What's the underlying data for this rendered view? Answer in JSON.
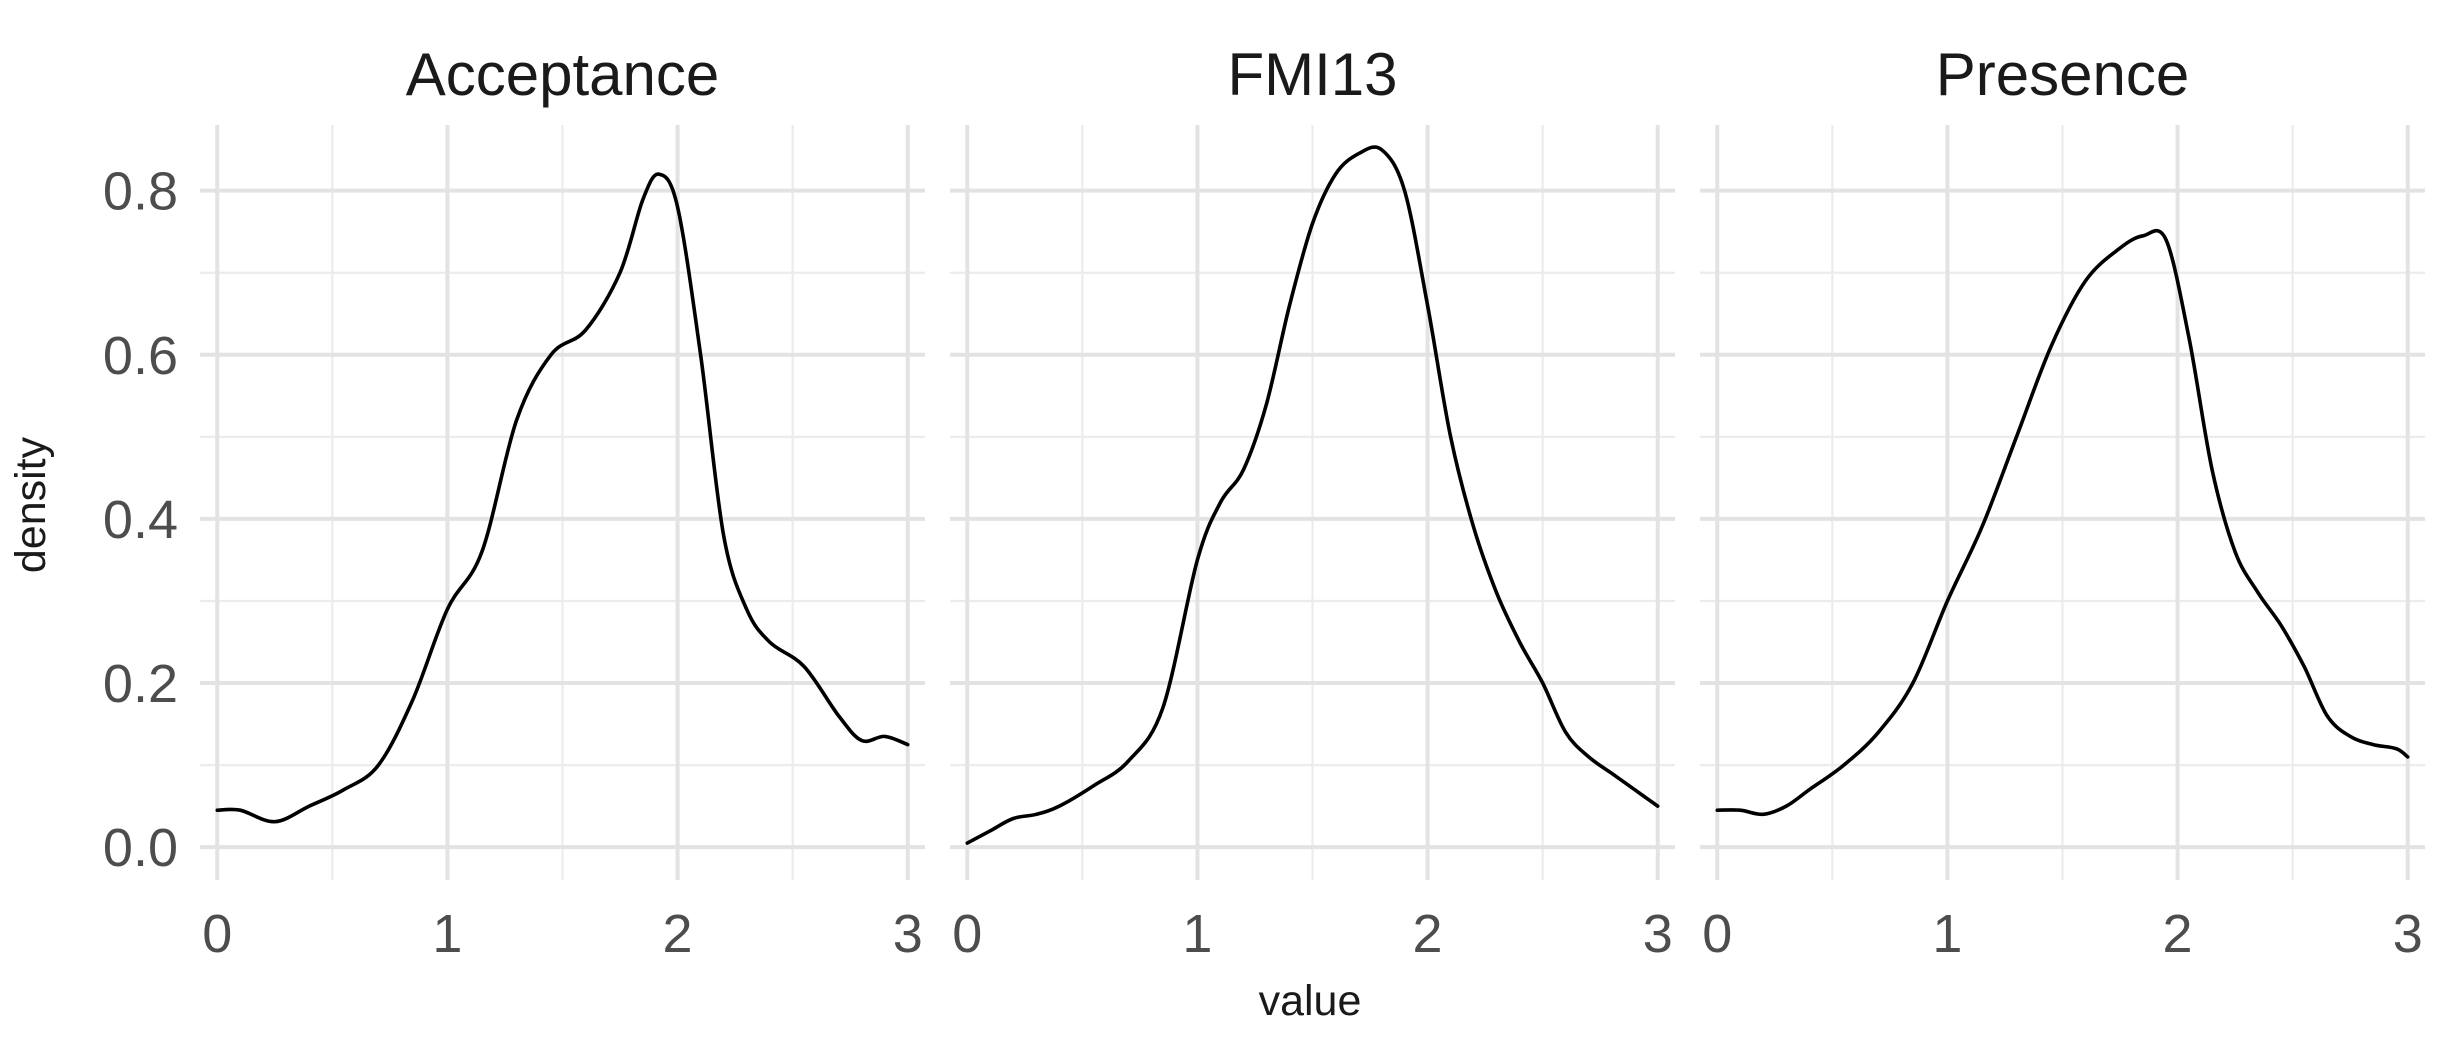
{
  "chart_data": {
    "type": "line",
    "xlabel": "value",
    "ylabel": "density",
    "xlim": [
      -0.075,
      3.075
    ],
    "ylim": [
      -0.04,
      0.88
    ],
    "x_ticks": [
      0,
      1,
      2,
      3
    ],
    "y_ticks": [
      0.0,
      0.2,
      0.4,
      0.6,
      0.8
    ],
    "y_tick_labels": [
      "0.0",
      "0.2",
      "0.4",
      "0.6",
      "0.8"
    ],
    "grid": true,
    "facets": [
      {
        "title": "Acceptance",
        "points": [
          [
            0.0,
            0.045
          ],
          [
            0.1,
            0.045
          ],
          [
            0.25,
            0.031
          ],
          [
            0.4,
            0.05
          ],
          [
            0.55,
            0.07
          ],
          [
            0.7,
            0.1
          ],
          [
            0.85,
            0.18
          ],
          [
            1.0,
            0.29
          ],
          [
            1.15,
            0.36
          ],
          [
            1.3,
            0.52
          ],
          [
            1.45,
            0.6
          ],
          [
            1.6,
            0.63
          ],
          [
            1.75,
            0.7
          ],
          [
            1.85,
            0.79
          ],
          [
            1.92,
            0.82
          ],
          [
            2.0,
            0.78
          ],
          [
            2.1,
            0.6
          ],
          [
            2.2,
            0.38
          ],
          [
            2.3,
            0.29
          ],
          [
            2.4,
            0.25
          ],
          [
            2.55,
            0.22
          ],
          [
            2.7,
            0.16
          ],
          [
            2.8,
            0.13
          ],
          [
            2.9,
            0.135
          ],
          [
            3.0,
            0.125
          ]
        ]
      },
      {
        "title": "FMI13",
        "points": [
          [
            0.0,
            0.005
          ],
          [
            0.1,
            0.02
          ],
          [
            0.2,
            0.035
          ],
          [
            0.3,
            0.04
          ],
          [
            0.4,
            0.05
          ],
          [
            0.55,
            0.075
          ],
          [
            0.7,
            0.105
          ],
          [
            0.85,
            0.17
          ],
          [
            1.0,
            0.35
          ],
          [
            1.1,
            0.42
          ],
          [
            1.2,
            0.46
          ],
          [
            1.3,
            0.54
          ],
          [
            1.4,
            0.66
          ],
          [
            1.5,
            0.76
          ],
          [
            1.6,
            0.82
          ],
          [
            1.7,
            0.845
          ],
          [
            1.8,
            0.85
          ],
          [
            1.9,
            0.8
          ],
          [
            2.0,
            0.66
          ],
          [
            2.1,
            0.5
          ],
          [
            2.2,
            0.39
          ],
          [
            2.3,
            0.31
          ],
          [
            2.4,
            0.25
          ],
          [
            2.5,
            0.2
          ],
          [
            2.6,
            0.14
          ],
          [
            2.7,
            0.11
          ],
          [
            2.8,
            0.09
          ],
          [
            2.9,
            0.07
          ],
          [
            3.0,
            0.05
          ]
        ]
      },
      {
        "title": "Presence",
        "points": [
          [
            0.0,
            0.045
          ],
          [
            0.1,
            0.045
          ],
          [
            0.2,
            0.04
          ],
          [
            0.3,
            0.05
          ],
          [
            0.4,
            0.07
          ],
          [
            0.55,
            0.1
          ],
          [
            0.7,
            0.14
          ],
          [
            0.85,
            0.2
          ],
          [
            1.0,
            0.3
          ],
          [
            1.15,
            0.39
          ],
          [
            1.3,
            0.5
          ],
          [
            1.45,
            0.61
          ],
          [
            1.6,
            0.69
          ],
          [
            1.75,
            0.73
          ],
          [
            1.85,
            0.745
          ],
          [
            1.95,
            0.74
          ],
          [
            2.05,
            0.62
          ],
          [
            2.15,
            0.46
          ],
          [
            2.25,
            0.36
          ],
          [
            2.35,
            0.31
          ],
          [
            2.45,
            0.27
          ],
          [
            2.55,
            0.22
          ],
          [
            2.65,
            0.16
          ],
          [
            2.75,
            0.135
          ],
          [
            2.85,
            0.125
          ],
          [
            2.95,
            0.12
          ],
          [
            3.0,
            0.11
          ]
        ]
      }
    ]
  }
}
